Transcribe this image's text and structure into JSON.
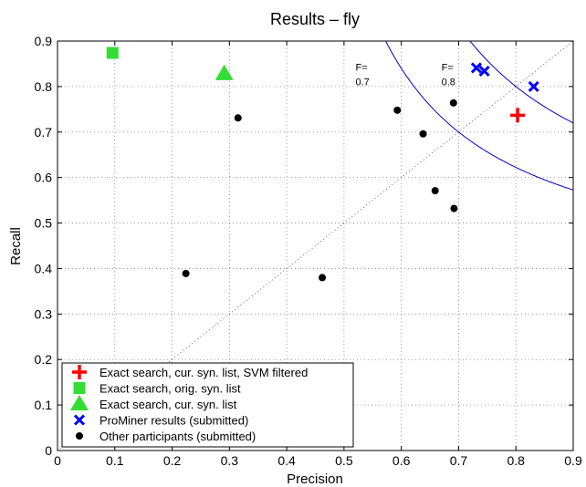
{
  "chart_data": {
    "type": "scatter",
    "title": "Results – fly",
    "xlabel": "Precision",
    "ylabel": "Recall",
    "xlim": [
      0,
      0.9
    ],
    "ylim": [
      0,
      0.9
    ],
    "x_ticks": [
      "0",
      "0.1",
      "0.2",
      "0.3",
      "0.4",
      "0.5",
      "0.6",
      "0.7",
      "0.8",
      "0.9"
    ],
    "y_ticks": [
      "0",
      "0.1",
      "0.2",
      "0.3",
      "0.4",
      "0.5",
      "0.6",
      "0.7",
      "0.8",
      "0.9"
    ],
    "grid": true,
    "legend_position": "bottom-left",
    "diagonal": true,
    "f_curves": [
      {
        "f": 0.7,
        "label_prefix": "F=",
        "label_value": "0.7",
        "label_pos": [
          0.52,
          0.835
        ]
      },
      {
        "f": 0.8,
        "label_prefix": "F=",
        "label_value": "0.8",
        "label_pos": [
          0.67,
          0.835
        ]
      }
    ],
    "series": [
      {
        "name": "Exact search, cur. syn. list, SVM filtered",
        "marker": "plus",
        "color": "#ff0000",
        "points": [
          [
            0.803,
            0.737
          ]
        ]
      },
      {
        "name": "Exact search, orig. syn. list",
        "marker": "square",
        "color": "#33dd33",
        "points": [
          [
            0.096,
            0.874
          ]
        ]
      },
      {
        "name": "Exact search, cur. syn. list",
        "marker": "triangle",
        "color": "#33dd33",
        "points": [
          [
            0.291,
            0.828
          ]
        ]
      },
      {
        "name": "ProMiner results (submitted)",
        "marker": "x",
        "color": "#0000ff",
        "points": [
          [
            0.731,
            0.841
          ],
          [
            0.745,
            0.834
          ],
          [
            0.831,
            0.8
          ]
        ]
      },
      {
        "name": "Other participants (submitted)",
        "marker": "dot",
        "color": "#000000",
        "points": [
          [
            0.315,
            0.731
          ],
          [
            0.224,
            0.389
          ],
          [
            0.462,
            0.38
          ],
          [
            0.593,
            0.748
          ],
          [
            0.638,
            0.696
          ],
          [
            0.691,
            0.764
          ],
          [
            0.659,
            0.571
          ],
          [
            0.692,
            0.532
          ]
        ]
      }
    ]
  },
  "colors": {
    "axis": "#000000",
    "grid": "#888888",
    "f_curve": "#0000cc"
  }
}
